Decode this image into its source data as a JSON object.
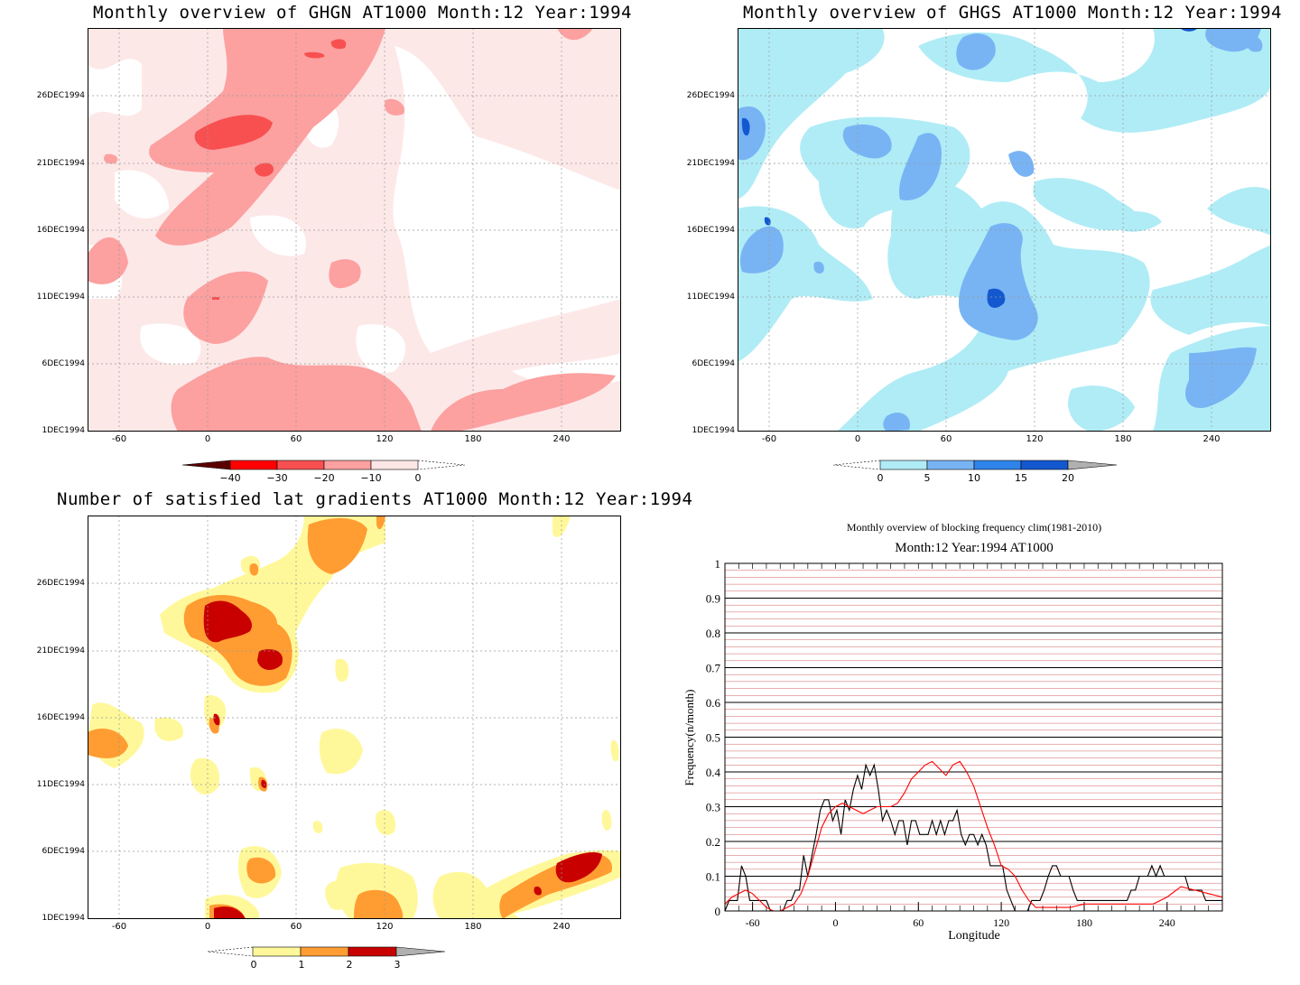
{
  "panels": {
    "ghgn": {
      "title": "Monthly overview of GHGN AT1000 Month:12 Year:1994",
      "colorbar": {
        "ticks": [
          "−40",
          "−30",
          "−20",
          "−10",
          "0"
        ],
        "colors": [
          "#5a0000",
          "#ff0000",
          "#f85050",
          "#fca0a0",
          "#fde6e6"
        ]
      }
    },
    "ghgs": {
      "title": "Monthly overview of GHGS AT1000 Month:12 Year:1994",
      "colorbar": {
        "ticks": [
          "0",
          "5",
          "10",
          "15",
          "20"
        ],
        "colors": [
          "#b0ecf6",
          "#78b4f4",
          "#2f84ea",
          "#1458d0",
          "#b0b0b0"
        ]
      }
    },
    "grad": {
      "title": "Number of satisfied lat gradients AT1000 Month:12 Year:1994",
      "colorbar": {
        "ticks": [
          "0",
          "1",
          "2",
          "3"
        ],
        "colors": [
          "#fff89a",
          "#ff9c32",
          "#c80000",
          "#b0b0b0"
        ]
      }
    },
    "freq": {
      "title": "Monthly overview of blocking frequency clim(1981-2010)",
      "subtitle": "Month:12 Year:1994  AT1000"
    }
  },
  "map_axes": {
    "x_ticks": [
      "-60",
      "0",
      "60",
      "120",
      "180",
      "240"
    ],
    "y_ticks": [
      "1DEC1994",
      "6DEC1994",
      "11DEC1994",
      "16DEC1994",
      "21DEC1994",
      "26DEC1994"
    ]
  },
  "chart_data": [
    {
      "type": "line",
      "title": "Monthly overview of blocking frequency clim(1981-2010)",
      "subtitle": "Month:12 Year:1994  AT1000",
      "xlabel": "Longitude",
      "ylabel": "Frequency(n/month)",
      "xlim": [
        -80,
        280
      ],
      "ylim": [
        0,
        1
      ],
      "x_ticks": [
        -60,
        0,
        60,
        120,
        180,
        240
      ],
      "y_ticks": [
        0,
        0.1,
        0.2,
        0.3,
        0.4,
        0.5,
        0.6,
        0.7,
        0.8,
        0.9,
        1
      ],
      "grid": true,
      "series": [
        {
          "color": "#000000",
          "x": [
            -80,
            -77,
            -74,
            -71,
            -68,
            -65,
            -62,
            -59,
            -56,
            -53,
            -50,
            -47,
            -44,
            -41,
            -38,
            -35,
            -32,
            -29,
            -26,
            -23,
            -20,
            -17,
            -14,
            -11,
            -8,
            -5,
            -2,
            1,
            4,
            7,
            10,
            13,
            16,
            19,
            22,
            25,
            28,
            31,
            34,
            37,
            40,
            43,
            46,
            49,
            52,
            55,
            58,
            61,
            64,
            67,
            70,
            73,
            76,
            79,
            82,
            85,
            88,
            91,
            94,
            97,
            100,
            103,
            106,
            109,
            112,
            115,
            118,
            121,
            124,
            127,
            130,
            133,
            136,
            139,
            142,
            145,
            148,
            151,
            154,
            157,
            160,
            163,
            166,
            169,
            172,
            175,
            178,
            181,
            184,
            187,
            190,
            193,
            196,
            199,
            202,
            205,
            208,
            211,
            214,
            217,
            220,
            223,
            226,
            229,
            232,
            235,
            238,
            241,
            244,
            247,
            250,
            253,
            256,
            259,
            262,
            265,
            268,
            271,
            274,
            277,
            280
          ],
          "y": [
            0.0,
            0.03,
            0.03,
            0.03,
            0.13,
            0.1,
            0.03,
            0.03,
            0.03,
            0.03,
            0.03,
            0.0,
            0.0,
            0.0,
            0.0,
            0.03,
            0.03,
            0.06,
            0.06,
            0.16,
            0.1,
            0.16,
            0.22,
            0.29,
            0.32,
            0.32,
            0.26,
            0.29,
            0.22,
            0.32,
            0.29,
            0.35,
            0.39,
            0.35,
            0.42,
            0.39,
            0.42,
            0.35,
            0.26,
            0.29,
            0.26,
            0.22,
            0.26,
            0.26,
            0.19,
            0.26,
            0.26,
            0.22,
            0.22,
            0.22,
            0.26,
            0.22,
            0.26,
            0.22,
            0.26,
            0.26,
            0.29,
            0.22,
            0.19,
            0.22,
            0.22,
            0.19,
            0.22,
            0.19,
            0.13,
            0.13,
            0.13,
            0.13,
            0.06,
            0.03,
            0.0,
            0.0,
            0.0,
            0.0,
            0.03,
            0.03,
            0.03,
            0.06,
            0.1,
            0.13,
            0.13,
            0.1,
            0.1,
            0.1,
            0.06,
            0.03,
            0.03,
            0.03,
            0.03,
            0.03,
            0.03,
            0.03,
            0.03,
            0.03,
            0.03,
            0.03,
            0.03,
            0.03,
            0.06,
            0.06,
            0.1,
            0.1,
            0.1,
            0.13,
            0.1,
            0.13,
            0.1,
            0.1,
            0.1,
            0.1,
            0.1,
            0.1,
            0.06,
            0.06,
            0.06,
            0.06,
            0.03,
            0.03,
            0.03,
            0.03,
            0.03
          ]
        },
        {
          "color": "#ff0000",
          "x": [
            -80,
            -75,
            -70,
            -65,
            -60,
            -55,
            -50,
            -45,
            -40,
            -35,
            -30,
            -25,
            -20,
            -15,
            -10,
            -5,
            0,
            5,
            10,
            15,
            20,
            25,
            30,
            35,
            40,
            45,
            50,
            55,
            60,
            65,
            70,
            75,
            80,
            85,
            90,
            95,
            100,
            105,
            110,
            115,
            120,
            125,
            130,
            135,
            140,
            145,
            150,
            160,
            170,
            180,
            190,
            200,
            210,
            220,
            230,
            240,
            250,
            260,
            270,
            280
          ],
          "y": [
            0.02,
            0.04,
            0.05,
            0.06,
            0.05,
            0.03,
            0.01,
            0.0,
            0.0,
            0.01,
            0.02,
            0.05,
            0.1,
            0.17,
            0.24,
            0.28,
            0.3,
            0.31,
            0.3,
            0.29,
            0.28,
            0.29,
            0.3,
            0.3,
            0.3,
            0.31,
            0.34,
            0.38,
            0.4,
            0.42,
            0.43,
            0.41,
            0.39,
            0.42,
            0.43,
            0.4,
            0.36,
            0.3,
            0.24,
            0.19,
            0.13,
            0.12,
            0.1,
            0.06,
            0.03,
            0.01,
            0.01,
            0.01,
            0.01,
            0.02,
            0.02,
            0.02,
            0.02,
            0.02,
            0.02,
            0.04,
            0.07,
            0.06,
            0.05,
            0.04
          ]
        }
      ]
    }
  ]
}
